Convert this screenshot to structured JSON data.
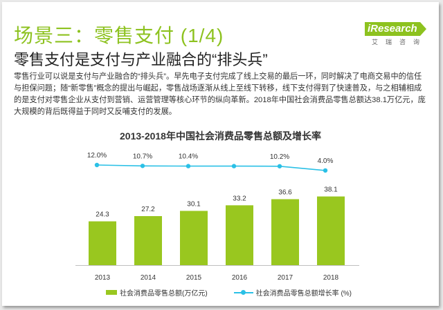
{
  "title": "场景三：零售支付 (1/4)",
  "subtitle": "零售支付是支付与产业融合的“排头兵”",
  "logo": {
    "name": "iResearch",
    "tagline": "艾瑞咨询"
  },
  "body_text": "零售行业可以说是支付与产业融合的“排头兵”。早先电子支付完成了线上交易的最后一环，同时解决了电商交易中的信任与担保问题；随“新零售”概念的提出与崛起，零售战场逐渐从线上至线下转移，线下支付得到了快速普及，与之相辅相成的是支付对零售企业从支付到营销、运营管理等核心环节的纵向革新。2018年中国社会消费品零售总额达38.1万亿元，庞大规模的背后既得益于同时又反哺支付的发展。",
  "colors": {
    "bar": "#99c71f",
    "line": "#2ac0e6",
    "title": "#8dc21f"
  },
  "chart_data": {
    "type": "bar",
    "title": "2013-2018年中国社会消费品零售总额及增长率",
    "categories": [
      "2013",
      "2014",
      "2015",
      "2016",
      "2017",
      "2018"
    ],
    "series": [
      {
        "name": "社会消费品零售总额(万亿元)",
        "type": "bar",
        "values": [
          24.3,
          27.2,
          30.1,
          33.2,
          36.6,
          38.1
        ],
        "labels": [
          "24.3",
          "27.2",
          "30.1",
          "33.2",
          "36.6",
          "38.1"
        ]
      },
      {
        "name": "社会消费品零售总额增长率 (%)",
        "type": "line",
        "values": [
          12.0,
          10.7,
          10.4,
          10.4,
          10.2,
          4.0
        ],
        "labels": [
          "12.0%",
          "10.7%",
          "10.4%",
          "",
          "10.2%",
          "4.0%"
        ]
      }
    ],
    "ylim": [
      0,
      40
    ],
    "legend": "bottom",
    "grid": false
  }
}
